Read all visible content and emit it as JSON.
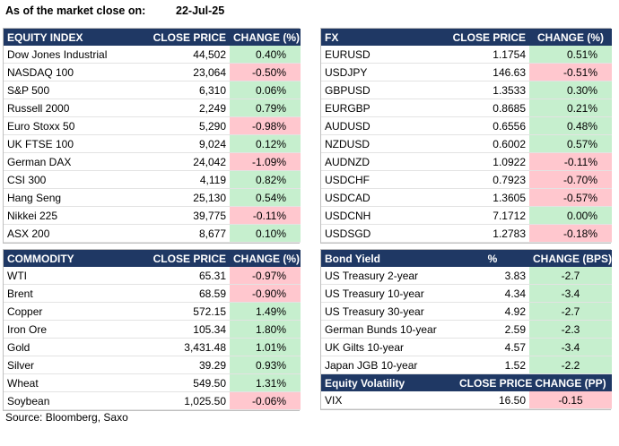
{
  "header": {
    "as_of_label": "As of the market close on:",
    "date": "22-Jul-25"
  },
  "equity": {
    "columns": [
      "EQUITY INDEX",
      "CLOSE PRICE",
      "CHANGE (%)"
    ],
    "rows": [
      {
        "name": "Dow Jones Industrial",
        "price": "44,502",
        "change": "0.40%",
        "dir": "pos"
      },
      {
        "name": "NASDAQ 100",
        "price": "23,064",
        "change": "-0.50%",
        "dir": "neg"
      },
      {
        "name": "S&P 500",
        "price": "6,310",
        "change": "0.06%",
        "dir": "pos"
      },
      {
        "name": "Russell 2000",
        "price": "2,249",
        "change": "0.79%",
        "dir": "pos"
      },
      {
        "name": "Euro Stoxx 50",
        "price": "5,290",
        "change": "-0.98%",
        "dir": "neg"
      },
      {
        "name": "UK FTSE 100",
        "price": "9,024",
        "change": "0.12%",
        "dir": "pos"
      },
      {
        "name": "German DAX",
        "price": "24,042",
        "change": "-1.09%",
        "dir": "neg"
      },
      {
        "name": "CSI 300",
        "price": "4,119",
        "change": "0.82%",
        "dir": "pos"
      },
      {
        "name": "Hang Seng",
        "price": "25,130",
        "change": "0.54%",
        "dir": "pos"
      },
      {
        "name": "Nikkei 225",
        "price": "39,775",
        "change": "-0.11%",
        "dir": "neg"
      },
      {
        "name": "ASX 200",
        "price": "8,677",
        "change": "0.10%",
        "dir": "pos"
      }
    ]
  },
  "fx": {
    "columns": [
      "FX",
      "CLOSE PRICE",
      "CHANGE (%)"
    ],
    "rows": [
      {
        "name": "EURUSD",
        "price": "1.1754",
        "change": "0.51%",
        "dir": "pos"
      },
      {
        "name": "USDJPY",
        "price": "146.63",
        "change": "-0.51%",
        "dir": "neg"
      },
      {
        "name": "GBPUSD",
        "price": "1.3533",
        "change": "0.30%",
        "dir": "pos"
      },
      {
        "name": "EURGBP",
        "price": "0.8685",
        "change": "0.21%",
        "dir": "pos"
      },
      {
        "name": "AUDUSD",
        "price": "0.6556",
        "change": "0.48%",
        "dir": "pos"
      },
      {
        "name": "NZDUSD",
        "price": "0.6002",
        "change": "0.57%",
        "dir": "pos"
      },
      {
        "name": "AUDNZD",
        "price": "1.0922",
        "change": "-0.11%",
        "dir": "neg"
      },
      {
        "name": "USDCHF",
        "price": "0.7923",
        "change": "-0.70%",
        "dir": "neg"
      },
      {
        "name": "USDCAD",
        "price": "1.3605",
        "change": "-0.57%",
        "dir": "neg"
      },
      {
        "name": "USDCNH",
        "price": "7.1712",
        "change": "0.00%",
        "dir": "pos"
      },
      {
        "name": "USDSGD",
        "price": "1.2783",
        "change": "-0.18%",
        "dir": "neg"
      }
    ]
  },
  "commodity": {
    "columns": [
      "COMMODITY",
      "CLOSE PRICE",
      "CHANGE (%)"
    ],
    "rows": [
      {
        "name": "WTI",
        "price": "65.31",
        "change": "-0.97%",
        "dir": "neg"
      },
      {
        "name": "Brent",
        "price": "68.59",
        "change": "-0.90%",
        "dir": "neg"
      },
      {
        "name": "Copper",
        "price": "572.15",
        "change": "1.49%",
        "dir": "pos"
      },
      {
        "name": "Iron Ore",
        "price": "105.34",
        "change": "1.80%",
        "dir": "pos"
      },
      {
        "name": "Gold",
        "price": "3,431.48",
        "change": "1.01%",
        "dir": "pos"
      },
      {
        "name": "Silver",
        "price": "39.29",
        "change": "0.93%",
        "dir": "pos"
      },
      {
        "name": "Wheat",
        "price": "549.50",
        "change": "1.31%",
        "dir": "pos"
      },
      {
        "name": "Soybean",
        "price": "1,025.50",
        "change": "-0.06%",
        "dir": "neg"
      }
    ]
  },
  "bond": {
    "columns": [
      "Bond Yield",
      "%",
      "CHANGE (BPS)"
    ],
    "rows": [
      {
        "name": "US Treasury 2-year",
        "price": "3.83",
        "change": "-2.7",
        "dir": "pos"
      },
      {
        "name": "US Treasury 10-year",
        "price": "4.34",
        "change": "-3.4",
        "dir": "pos"
      },
      {
        "name": "US Treasury 30-year",
        "price": "4.92",
        "change": "-2.7",
        "dir": "pos"
      },
      {
        "name": "German Bunds 10-year",
        "price": "2.59",
        "change": "-2.3",
        "dir": "pos"
      },
      {
        "name": "UK Gilts 10-year",
        "price": "4.57",
        "change": "-3.4",
        "dir": "pos"
      },
      {
        "name": "Japan JGB 10-year",
        "price": "1.52",
        "change": "-2.2",
        "dir": "pos"
      }
    ]
  },
  "volatility": {
    "columns": [
      "Equity Volatility",
      "CLOSE PRICE",
      "CHANGE (PP)"
    ],
    "rows": [
      {
        "name": "VIX",
        "price": "16.50",
        "change": "-0.15",
        "dir": "neg"
      }
    ]
  },
  "footer": {
    "source": "Source: Bloomberg, Saxo"
  },
  "colors": {
    "header_bg": "#1f3864",
    "positive_bg": "#c6efce",
    "negative_bg": "#ffc7ce"
  }
}
